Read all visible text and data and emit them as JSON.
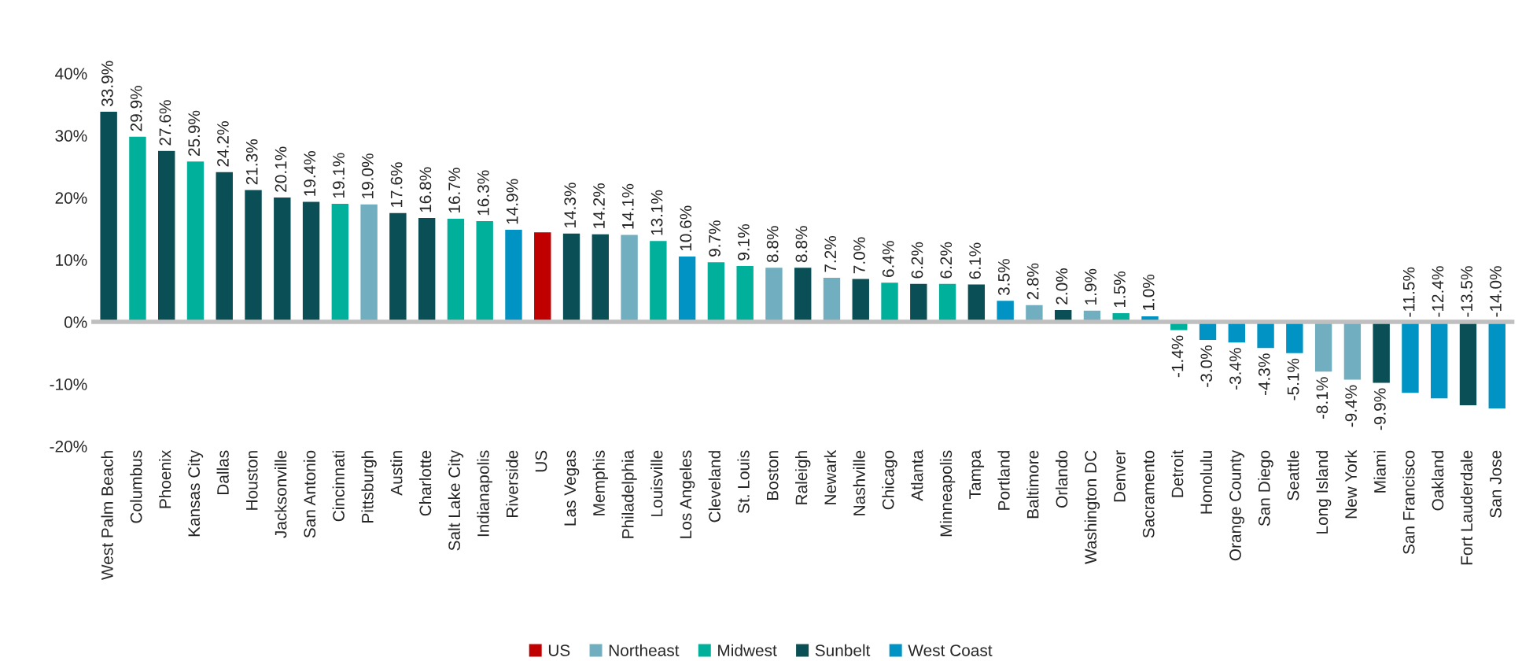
{
  "chart_data": {
    "type": "bar",
    "data_labels": false,
    "ref_lines": [
      {
        "axis": "y",
        "value": 0,
        "color": "#bfbfbf"
      }
    ],
    "grid": false,
    "legend": "bottom",
    "categories": [
      "West Palm Beach",
      "Columbus",
      "Phoenix",
      "Kansas City",
      "Dallas",
      "Houston",
      "Jacksonville",
      "San Antonio",
      "Cincinnati",
      "Pittsburgh",
      "Austin",
      "Charlotte",
      "Salt Lake City",
      "Indianapolis",
      "Riverside",
      "US",
      "Las Vegas",
      "Memphis",
      "Philadelphia",
      "Louisville",
      "Los Angeles",
      "Cleveland",
      "St. Louis",
      "Boston",
      "Raleigh",
      "Newark",
      "Nashville",
      "Chicago",
      "Atlanta",
      "Minneapolis",
      "Tampa",
      "Portland",
      "Baltimore",
      "Orlando",
      "Washington DC",
      "Denver",
      "Sacramento",
      "Detroit",
      "Honolulu",
      "Orange County",
      "San Diego",
      "Seattle",
      "Long Island",
      "New York",
      "Miami",
      "San Francisco",
      "Oakland",
      "Fort Lauderdale",
      "San Jose"
    ],
    "ylim": [
      -20,
      40
    ],
    "yticks": [
      {
        "value": -20,
        "label": "-20%"
      },
      {
        "value": -10,
        "label": "-10%"
      },
      {
        "value": 0,
        "label": "0%"
      },
      {
        "value": 10,
        "label": "10%"
      },
      {
        "value": 20,
        "label": "20%"
      },
      {
        "value": 30,
        "label": "30%"
      },
      {
        "value": 40,
        "label": "40%"
      }
    ],
    "series": [
      {
        "name": "US",
        "color": "#c00000",
        "values": [
          null,
          null,
          null,
          null,
          null,
          null,
          null,
          null,
          null,
          null,
          null,
          null,
          null,
          null,
          null,
          14.5,
          null,
          null,
          null,
          null,
          null,
          null,
          null,
          null,
          null,
          null,
          null,
          null,
          null,
          null,
          null,
          null,
          null,
          null,
          null,
          null,
          null,
          null,
          null,
          null,
          null,
          null,
          null,
          null,
          null,
          null,
          null,
          null,
          null
        ],
        "value_labels": [
          null,
          null,
          null,
          null,
          null,
          null,
          null,
          null,
          null,
          null,
          null,
          null,
          null,
          null,
          null,
          null,
          null,
          null,
          null,
          null,
          null,
          null,
          null,
          null,
          null,
          null,
          null,
          null,
          null,
          null,
          null,
          null,
          null,
          null,
          null,
          null,
          null,
          null,
          null,
          null,
          null,
          null,
          null,
          null,
          null,
          null,
          null,
          null,
          null
        ]
      },
      {
        "name": "Northeast",
        "color": "#71afc0",
        "values": [
          null,
          null,
          null,
          null,
          null,
          null,
          null,
          null,
          null,
          19.0,
          null,
          null,
          null,
          null,
          null,
          null,
          null,
          null,
          14.1,
          null,
          null,
          null,
          null,
          8.8,
          null,
          7.2,
          null,
          null,
          null,
          null,
          null,
          null,
          2.8,
          null,
          1.9,
          null,
          null,
          null,
          null,
          null,
          null,
          null,
          -8.1,
          -9.4,
          null,
          null,
          null,
          null,
          null
        ],
        "value_labels": [
          null,
          null,
          null,
          null,
          null,
          null,
          null,
          null,
          null,
          "19.0%",
          null,
          null,
          null,
          null,
          null,
          null,
          null,
          null,
          "14.1%",
          null,
          null,
          null,
          null,
          "8.8%",
          null,
          "7.2%",
          null,
          null,
          null,
          null,
          null,
          null,
          "2.8%",
          null,
          "1.9%",
          null,
          null,
          null,
          null,
          null,
          null,
          null,
          "-8.1%",
          "-9.4%",
          null,
          null,
          null,
          null,
          null
        ]
      },
      {
        "name": "Midwest",
        "color": "#00b09a",
        "values": [
          null,
          29.9,
          null,
          25.9,
          null,
          null,
          null,
          null,
          19.1,
          null,
          null,
          null,
          16.7,
          16.3,
          null,
          null,
          null,
          null,
          null,
          13.1,
          null,
          9.7,
          9.1,
          null,
          null,
          null,
          null,
          6.4,
          null,
          6.2,
          null,
          null,
          null,
          null,
          null,
          1.5,
          null,
          -1.4,
          null,
          null,
          null,
          null,
          null,
          null,
          null,
          null,
          null,
          null,
          null
        ],
        "value_labels": [
          null,
          "29.9%",
          null,
          "25.9%",
          null,
          null,
          null,
          null,
          "19.1%",
          null,
          null,
          null,
          "16.7%",
          "16.3%",
          null,
          null,
          null,
          null,
          null,
          "13.1%",
          null,
          "9.7%",
          "9.1%",
          null,
          null,
          null,
          null,
          "6.4%",
          null,
          "6.2%",
          null,
          null,
          null,
          null,
          null,
          "1.5%",
          null,
          "-1.4%",
          null,
          null,
          null,
          null,
          null,
          null,
          null,
          null,
          null,
          null,
          null
        ]
      },
      {
        "name": "Sunbelt",
        "color": "#0a4f55",
        "values": [
          33.9,
          null,
          27.6,
          null,
          24.2,
          21.3,
          20.1,
          19.4,
          null,
          null,
          17.6,
          16.8,
          null,
          null,
          null,
          null,
          14.3,
          14.2,
          null,
          null,
          null,
          null,
          null,
          null,
          8.8,
          null,
          7.0,
          null,
          6.2,
          null,
          6.1,
          null,
          null,
          2.0,
          null,
          null,
          null,
          null,
          null,
          null,
          null,
          null,
          null,
          null,
          -9.9,
          null,
          null,
          -13.5,
          null
        ],
        "value_labels": [
          "33.9%",
          null,
          "27.6%",
          null,
          "24.2%",
          "21.3%",
          "20.1%",
          "19.4%",
          null,
          null,
          "17.6%",
          "16.8%",
          null,
          null,
          null,
          null,
          "14.3%",
          "14.2%",
          null,
          null,
          null,
          null,
          null,
          null,
          "8.8%",
          null,
          "7.0%",
          null,
          "6.2%",
          null,
          "6.1%",
          null,
          null,
          "2.0%",
          null,
          null,
          null,
          null,
          null,
          null,
          null,
          null,
          null,
          null,
          "-9.9%",
          null,
          null,
          "-13.5%",
          null
        ]
      },
      {
        "name": "West Coast",
        "color": "#0093c4",
        "values": [
          null,
          null,
          null,
          null,
          null,
          null,
          null,
          null,
          null,
          null,
          null,
          null,
          null,
          null,
          14.9,
          null,
          null,
          null,
          null,
          null,
          10.6,
          null,
          null,
          null,
          null,
          null,
          null,
          null,
          null,
          null,
          null,
          3.5,
          null,
          null,
          null,
          null,
          1.0,
          null,
          -3.0,
          -3.4,
          -4.3,
          -5.1,
          null,
          null,
          null,
          -11.5,
          -12.4,
          null,
          -14.0
        ],
        "value_labels": [
          null,
          null,
          null,
          null,
          null,
          null,
          null,
          null,
          null,
          null,
          null,
          null,
          null,
          null,
          "14.9%",
          null,
          null,
          null,
          null,
          null,
          "10.6%",
          null,
          null,
          null,
          null,
          null,
          null,
          null,
          null,
          null,
          null,
          "3.5%",
          null,
          null,
          null,
          null,
          "1.0%",
          null,
          "-3.0%",
          "-3.4%",
          "-4.3%",
          "-5.1%",
          null,
          null,
          null,
          "-11.5%",
          "-12.4%",
          null,
          "-14.0%"
        ]
      }
    ]
  }
}
